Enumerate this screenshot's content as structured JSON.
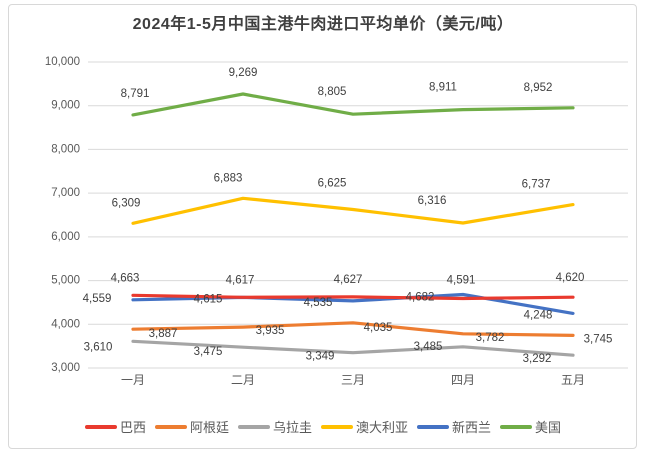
{
  "chart_data": {
    "type": "line",
    "title": "2024年1-5月中国主港牛肉进口平均单价（美元/吨）",
    "categories": [
      "一月",
      "二月",
      "三月",
      "四月",
      "五月"
    ],
    "series": [
      {
        "name": "巴西",
        "color": "#e93a2e",
        "values": [
          4663,
          4617,
          4627,
          4591,
          4620
        ]
      },
      {
        "name": "阿根廷",
        "color": "#ed7d31",
        "values": [
          3887,
          3935,
          4035,
          3782,
          3745
        ]
      },
      {
        "name": "乌拉圭",
        "color": "#a5a5a5",
        "values": [
          3610,
          3475,
          3349,
          3485,
          3292
        ]
      },
      {
        "name": "澳大利亚",
        "color": "#ffc000",
        "values": [
          6309,
          6883,
          6625,
          6316,
          6737
        ]
      },
      {
        "name": "新西兰",
        "color": "#4472c4",
        "values": [
          4559,
          4615,
          4535,
          4682,
          4248
        ]
      },
      {
        "name": "美国",
        "color": "#70ad47",
        "values": [
          8791,
          9269,
          8805,
          8911,
          8952
        ]
      }
    ],
    "ylim": [
      3000,
      10000
    ],
    "y_tick_step": 1000,
    "y_tick_labels": [
      "3,000",
      "4,000",
      "5,000",
      "6,000",
      "7,000",
      "8,000",
      "9,000",
      "10,000"
    ],
    "grid": true,
    "data_labels": true,
    "legend_position": "bottom",
    "colors_meta": {
      "gridline": "#d9d9d9",
      "axis_text": "#595959",
      "data_label_text": "#404040",
      "title_text": "#3f3f3f"
    }
  }
}
